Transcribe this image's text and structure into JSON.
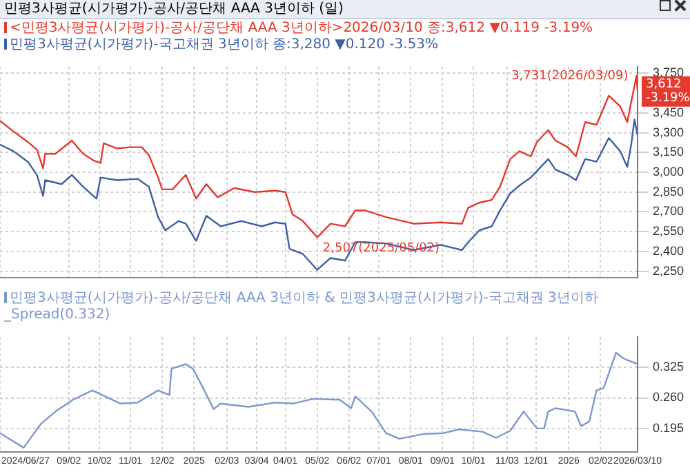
{
  "chart_data": [
    {
      "type": "line",
      "title": "민평3사평균(시가평가)-공사/공단채 AAA 3년이하 (일)",
      "legend": "top left",
      "grid": true,
      "tick_labels": "y",
      "xlim": [
        "2024-06-27",
        "2026-03-10"
      ],
      "xticks": [
        {
          "value": "2024-06-27",
          "label": null
        },
        {
          "value": "2024-09-02",
          "label": null
        },
        {
          "value": "2024-10-02",
          "label": null
        },
        {
          "value": "2024-11-01",
          "label": null
        },
        {
          "value": "2024-12-02",
          "label": null
        },
        {
          "value": "2025-01-02",
          "label": null
        },
        {
          "value": "2025-02-03",
          "label": null
        },
        {
          "value": "2025-03-04",
          "label": null
        },
        {
          "value": "2025-04-01",
          "label": null
        },
        {
          "value": "2025-05-02",
          "label": null
        },
        {
          "value": "2025-06-02",
          "label": null
        },
        {
          "value": "2025-07-01",
          "label": null
        },
        {
          "value": "2025-08-01",
          "label": null
        },
        {
          "value": "2025-09-01",
          "label": null
        },
        {
          "value": "2025-10-01",
          "label": null
        },
        {
          "value": "2025-11-03",
          "label": null
        },
        {
          "value": "2025-12-01",
          "label": null
        },
        {
          "value": "2026-01-02",
          "label": null
        },
        {
          "value": "2026-02-02",
          "label": null
        },
        {
          "value": "2026-03-10",
          "label": null
        }
      ],
      "ylim": [
        2200,
        3800
      ],
      "yticks": [
        {
          "value": 2250,
          "label": "2,250"
        },
        {
          "value": 2400,
          "label": "2,400"
        },
        {
          "value": 2550,
          "label": "2,550"
        },
        {
          "value": 2700,
          "label": "2,700"
        },
        {
          "value": 2850,
          "label": "2,850"
        },
        {
          "value": 3000,
          "label": "3,000"
        },
        {
          "value": 3150,
          "label": "3,150"
        },
        {
          "value": 3300,
          "label": "3,300"
        },
        {
          "value": 3450,
          "label": "3,450"
        },
        {
          "value": 3750,
          "label": "3,750"
        }
      ],
      "annotations": [
        {
          "text": "3,731(2026/03/09)",
          "x": "2026-03-09",
          "y": 3731
        },
        {
          "text": "2,507(2025/05/02)",
          "x": "2025-05-02",
          "y": 2507
        },
        {
          "text": "3,612 -3.19%",
          "x": "2026-03-10",
          "y": 3612
        }
      ],
      "series": [
        {
          "name": "<민평3사평균(시가평가)-공사/공단채 AAA 3년이하>2026/03/10 종:3,612 ▼0.119 -3.19%",
          "color": "#e5392e",
          "x": [
            "2024-06-27",
            "2024-07-10",
            "2024-07-24",
            "2024-08-02",
            "2024-08-08",
            "2024-08-10",
            "2024-08-20",
            "2024-09-05",
            "2024-09-16",
            "2024-09-26",
            "2024-10-03",
            "2024-10-06",
            "2024-10-19",
            "2024-11-01",
            "2024-11-12",
            "2024-11-19",
            "2024-11-28",
            "2024-12-02",
            "2024-12-12",
            "2024-12-25",
            "2025-01-04",
            "2025-01-14",
            "2025-01-25",
            "2025-02-10",
            "2025-03-02",
            "2025-03-22",
            "2025-04-01",
            "2025-04-08",
            "2025-04-18",
            "2025-05-02",
            "2025-05-15",
            "2025-05-29",
            "2025-06-08",
            "2025-06-18",
            "2025-07-08",
            "2025-08-04",
            "2025-08-30",
            "2025-09-20",
            "2025-09-26",
            "2025-10-07",
            "2025-10-19",
            "2025-10-27",
            "2025-11-06",
            "2025-11-15",
            "2025-11-26",
            "2025-12-02",
            "2025-12-13",
            "2025-12-20",
            "2026-01-01",
            "2026-01-09",
            "2026-01-18",
            "2026-01-29",
            "2026-02-10",
            "2026-02-21",
            "2026-02-28",
            "2026-03-04",
            "2026-03-09",
            "2026-03-10"
          ],
          "values": [
            3390,
            3310,
            3230,
            3170,
            3030,
            3140,
            3140,
            3240,
            3140,
            3090,
            3070,
            3220,
            3180,
            3190,
            3190,
            3130,
            2960,
            2870,
            2870,
            2980,
            2800,
            2910,
            2810,
            2880,
            2850,
            2860,
            2850,
            2680,
            2630,
            2507,
            2610,
            2590,
            2710,
            2710,
            2660,
            2610,
            2620,
            2610,
            2730,
            2770,
            2790,
            2890,
            3100,
            3160,
            3120,
            3230,
            3320,
            3240,
            3190,
            3120,
            3380,
            3360,
            3580,
            3500,
            3380,
            3540,
            3731,
            3612
          ]
        },
        {
          "name": "민평3사평균(시가평가)-국고채권 3년이하 종:3,280 ▼0.120 -3.53%",
          "color": "#3d5fa6",
          "x": [
            "2024-06-27",
            "2024-07-10",
            "2024-07-24",
            "2024-08-02",
            "2024-08-08",
            "2024-08-10",
            "2024-08-26",
            "2024-09-05",
            "2024-09-16",
            "2024-09-29",
            "2024-10-03",
            "2024-10-19",
            "2024-11-08",
            "2024-11-19",
            "2024-11-28",
            "2024-12-05",
            "2024-12-18",
            "2024-12-25",
            "2025-01-04",
            "2025-01-14",
            "2025-01-28",
            "2025-02-17",
            "2025-03-09",
            "2025-03-22",
            "2025-04-01",
            "2025-04-05",
            "2025-04-18",
            "2025-05-02",
            "2025-05-15",
            "2025-05-29",
            "2025-06-08",
            "2025-06-18",
            "2025-07-08",
            "2025-08-04",
            "2025-08-30",
            "2025-09-20",
            "2025-09-26",
            "2025-10-07",
            "2025-10-19",
            "2025-10-27",
            "2025-11-06",
            "2025-11-15",
            "2025-11-26",
            "2025-12-13",
            "2025-12-20",
            "2026-01-01",
            "2026-01-09",
            "2026-01-18",
            "2026-01-29",
            "2026-02-10",
            "2026-02-21",
            "2026-02-28",
            "2026-03-04",
            "2026-03-07",
            "2026-03-10"
          ],
          "values": [
            3210,
            3160,
            3080,
            2980,
            2820,
            2940,
            2910,
            2980,
            2890,
            2800,
            2960,
            2940,
            2950,
            2890,
            2660,
            2560,
            2630,
            2610,
            2480,
            2670,
            2590,
            2630,
            2590,
            2620,
            2610,
            2420,
            2380,
            2260,
            2350,
            2330,
            2470,
            2470,
            2460,
            2410,
            2450,
            2410,
            2470,
            2560,
            2590,
            2710,
            2840,
            2900,
            2960,
            3100,
            3020,
            2980,
            2940,
            3100,
            3080,
            3260,
            3160,
            3040,
            3220,
            3400,
            3280
          ]
        }
      ]
    },
    {
      "type": "line",
      "legend": "top left",
      "grid": true,
      "xlim": [
        "2024-06-27",
        "2026-03-10"
      ],
      "xticks": [
        {
          "value": "2024-06-27",
          "label": "2024/06/27"
        },
        {
          "value": "2024-09-02",
          "label": "09/02"
        },
        {
          "value": "2024-10-02",
          "label": "10/02"
        },
        {
          "value": "2024-11-01",
          "label": "11/01"
        },
        {
          "value": "2024-12-02",
          "label": "12/02"
        },
        {
          "value": "2025-01-02",
          "label": "2025"
        },
        {
          "value": "2025-02-03",
          "label": "02/03"
        },
        {
          "value": "2025-03-04",
          "label": "03/04"
        },
        {
          "value": "2025-04-01",
          "label": "04/01"
        },
        {
          "value": "2025-05-02",
          "label": "05/02"
        },
        {
          "value": "2025-06-02",
          "label": "06/02"
        },
        {
          "value": "2025-07-01",
          "label": "07/01"
        },
        {
          "value": "2025-08-01",
          "label": "08/01"
        },
        {
          "value": "2025-09-01",
          "label": "09/01"
        },
        {
          "value": "2025-10-01",
          "label": "10/01"
        },
        {
          "value": "2025-11-03",
          "label": "11/03"
        },
        {
          "value": "2025-12-01",
          "label": "12/01"
        },
        {
          "value": "2026-01-02",
          "label": "2026"
        },
        {
          "value": "2026-02-02",
          "label": "02/02"
        },
        {
          "value": "2026-03-10",
          "label": "2026/03/10"
        }
      ],
      "ylim": [
        0.145,
        0.39
      ],
      "yticks": [
        0.195,
        {
          "value": 0.26,
          "label": "0.260"
        },
        0.325
      ],
      "series": [
        {
          "name": "민평3사평균(시가평가)-공사/공단채 AAA 3년이하 & 민평3사평균(시가평가)-국고채권 3년이하_Spread(0.332)",
          "color": "#7b98cf",
          "x": [
            "2024-06-27",
            "2024-07-20",
            "2024-08-06",
            "2024-08-20",
            "2024-09-06",
            "2024-09-25",
            "2024-10-22",
            "2024-11-08",
            "2024-11-28",
            "2024-12-09",
            "2024-12-11",
            "2024-12-25",
            "2025-01-01",
            "2025-01-12",
            "2025-01-21",
            "2025-01-28",
            "2025-02-24",
            "2025-03-22",
            "2025-04-09",
            "2025-04-28",
            "2025-05-24",
            "2025-06-04",
            "2025-06-08",
            "2025-06-24",
            "2025-07-08",
            "2025-07-21",
            "2025-08-13",
            "2025-09-02",
            "2025-09-17",
            "2025-10-10",
            "2025-10-23",
            "2025-11-06",
            "2025-11-19",
            "2025-12-02",
            "2025-12-09",
            "2025-12-13",
            "2025-12-20",
            "2026-01-08",
            "2026-01-14",
            "2026-01-22",
            "2026-01-29",
            "2026-02-05",
            "2026-02-17",
            "2026-02-25",
            "2026-03-10"
          ],
          "values": [
            0.185,
            0.154,
            0.205,
            0.231,
            0.256,
            0.276,
            0.248,
            0.25,
            0.276,
            0.266,
            0.322,
            0.332,
            0.322,
            0.276,
            0.236,
            0.248,
            0.241,
            0.25,
            0.248,
            0.258,
            0.256,
            0.238,
            0.263,
            0.231,
            0.185,
            0.173,
            0.183,
            0.185,
            0.193,
            0.188,
            0.175,
            0.19,
            0.231,
            0.195,
            0.195,
            0.231,
            0.238,
            0.231,
            0.2,
            0.21,
            0.276,
            0.281,
            0.356,
            0.343,
            0.332
          ]
        }
      ]
    }
  ]
}
